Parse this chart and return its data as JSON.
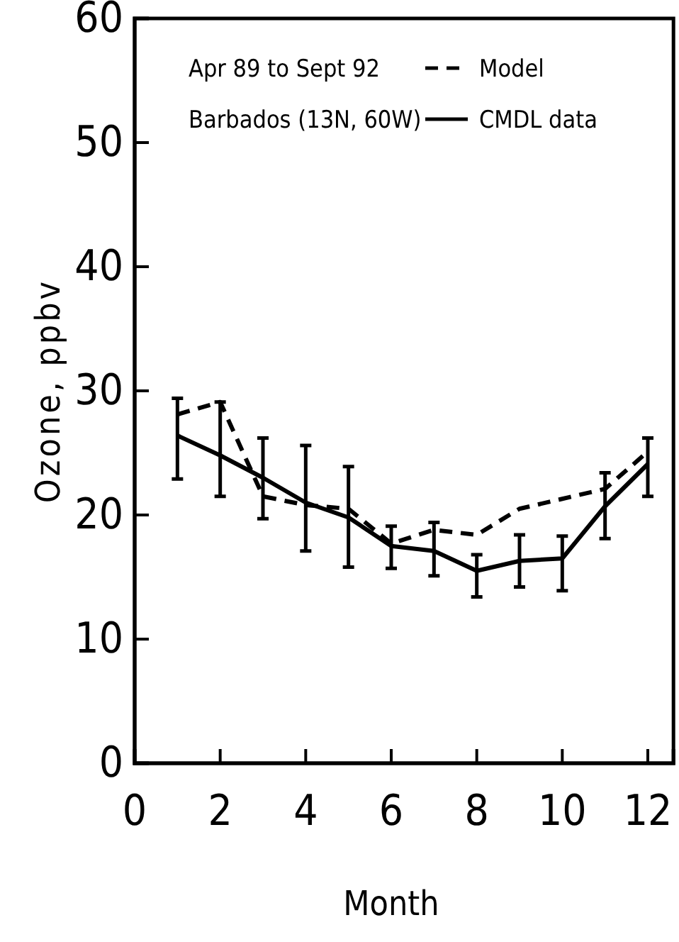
{
  "chart_data": {
    "type": "line",
    "xlabel": "Month",
    "ylabel": "Ozone, ppbv",
    "x": [
      1,
      2,
      3,
      4,
      5,
      6,
      7,
      8,
      9,
      10,
      11,
      12
    ],
    "xlim": [
      0,
      12.6
    ],
    "xticks": [
      0,
      2,
      4,
      6,
      8,
      10,
      12
    ],
    "ylim": [
      0,
      60
    ],
    "yticks": [
      0,
      10,
      20,
      30,
      40,
      50,
      60
    ],
    "annotations": [
      "Apr 89 to Sept 92",
      "Barbados (13N, 60W)"
    ],
    "legend": "top right",
    "grid": false,
    "marker": "none",
    "series": [
      {
        "name": "Model",
        "color": "#000000",
        "line_style": "dashed",
        "values": [
          28.1,
          29.1,
          21.5,
          20.8,
          20.5,
          17.7,
          18.8,
          18.4,
          20.5,
          21.3,
          22.1,
          25.1
        ]
      },
      {
        "name": "CMDL data",
        "color": "#000000",
        "line_style": "solid",
        "values": [
          26.4,
          24.8,
          23.0,
          21.0,
          19.8,
          17.5,
          17.1,
          15.5,
          16.3,
          16.5,
          20.7,
          24.1
        ],
        "errors": [
          [
            22.9,
            29.4
          ],
          [
            21.5,
            29.1
          ],
          [
            19.7,
            26.2
          ],
          [
            17.1,
            25.6
          ],
          [
            15.8,
            23.9
          ],
          [
            15.7,
            19.1
          ],
          [
            15.1,
            19.4
          ],
          [
            13.4,
            16.8
          ],
          [
            14.2,
            18.4
          ],
          [
            13.9,
            18.3
          ],
          [
            18.1,
            23.4
          ],
          [
            21.5,
            26.2
          ]
        ]
      }
    ]
  }
}
